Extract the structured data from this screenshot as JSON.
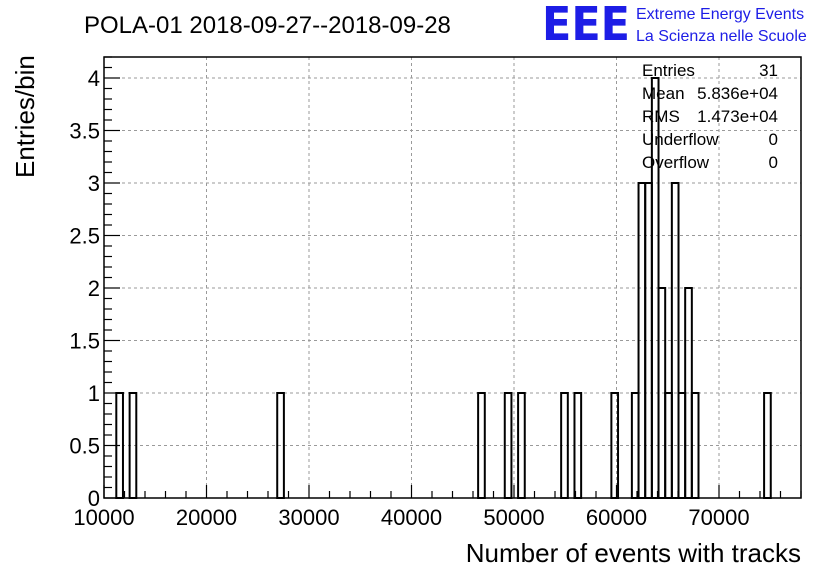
{
  "title": "POLA-01 2018-09-27--2018-09-28",
  "logo": {
    "mark": "EEE",
    "line1": "Extreme Energy Events",
    "line2": "La Scienza nelle Scuole",
    "color": "#1d1de6"
  },
  "stats": [
    {
      "label": "Entries",
      "value": "31"
    },
    {
      "label": "Mean",
      "value": "5.836e+04"
    },
    {
      "label": "RMS",
      "value": "1.473e+04"
    },
    {
      "label": "Underflow",
      "value": "0"
    },
    {
      "label": "Overflow",
      "value": "0"
    }
  ],
  "chart_data": {
    "type": "bar",
    "histogram": true,
    "title": "POLA-01 2018-09-27--2018-09-28",
    "xlabel": "Number of events with tracks",
    "ylabel": "Entries/bin",
    "xlim": [
      10000,
      78000
    ],
    "ylim": [
      0,
      4.2
    ],
    "grid": true,
    "xticks": [
      "10000",
      "20000",
      "30000",
      "40000",
      "50000",
      "60000",
      "70000"
    ],
    "yticks": [
      "0",
      "0.5",
      "1",
      "1.5",
      "2",
      "2.5",
      "3",
      "3.5",
      "4"
    ],
    "bins": [
      {
        "x0": 11200,
        "x1": 11850,
        "count": 1
      },
      {
        "x0": 12500,
        "x1": 13150,
        "count": 1
      },
      {
        "x0": 26900,
        "x1": 27550,
        "count": 1
      },
      {
        "x0": 46500,
        "x1": 47150,
        "count": 1
      },
      {
        "x0": 49100,
        "x1": 49750,
        "count": 1
      },
      {
        "x0": 50400,
        "x1": 51050,
        "count": 1
      },
      {
        "x0": 54600,
        "x1": 55250,
        "count": 1
      },
      {
        "x0": 55900,
        "x1": 56550,
        "count": 1
      },
      {
        "x0": 59500,
        "x1": 60150,
        "count": 1
      },
      {
        "x0": 61500,
        "x1": 62150,
        "count": 1
      },
      {
        "x0": 62150,
        "x1": 62800,
        "count": 3
      },
      {
        "x0": 62800,
        "x1": 63450,
        "count": 3
      },
      {
        "x0": 63450,
        "x1": 64100,
        "count": 4
      },
      {
        "x0": 64100,
        "x1": 64750,
        "count": 2
      },
      {
        "x0": 64750,
        "x1": 65400,
        "count": 1
      },
      {
        "x0": 65400,
        "x1": 66050,
        "count": 3
      },
      {
        "x0": 66050,
        "x1": 66700,
        "count": 1
      },
      {
        "x0": 66700,
        "x1": 67350,
        "count": 2
      },
      {
        "x0": 67350,
        "x1": 68000,
        "count": 1
      },
      {
        "x0": 74400,
        "x1": 75050,
        "count": 1
      }
    ]
  }
}
